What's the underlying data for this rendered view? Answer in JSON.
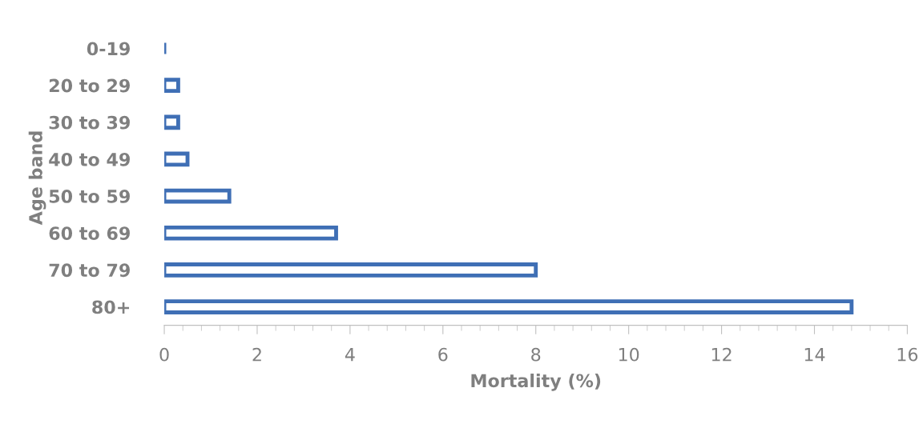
{
  "chart_data": {
    "type": "bar",
    "orientation": "horizontal",
    "xlabel": "Mortality (%)",
    "ylabel": "Age band",
    "categories": [
      "0-19",
      "20 to 29",
      "30 to 39",
      "40 to 49",
      "50 to 59",
      "60 to 69",
      "70 to 79",
      "80+"
    ],
    "values": [
      0,
      0.3,
      0.3,
      0.5,
      1.4,
      3.7,
      8.0,
      14.8
    ],
    "color": "#3f6fb5",
    "xlim": [
      0,
      16
    ],
    "xticks": [
      0,
      2,
      4,
      6,
      8,
      10,
      12,
      14,
      16
    ],
    "grid": false,
    "legend": false
  }
}
